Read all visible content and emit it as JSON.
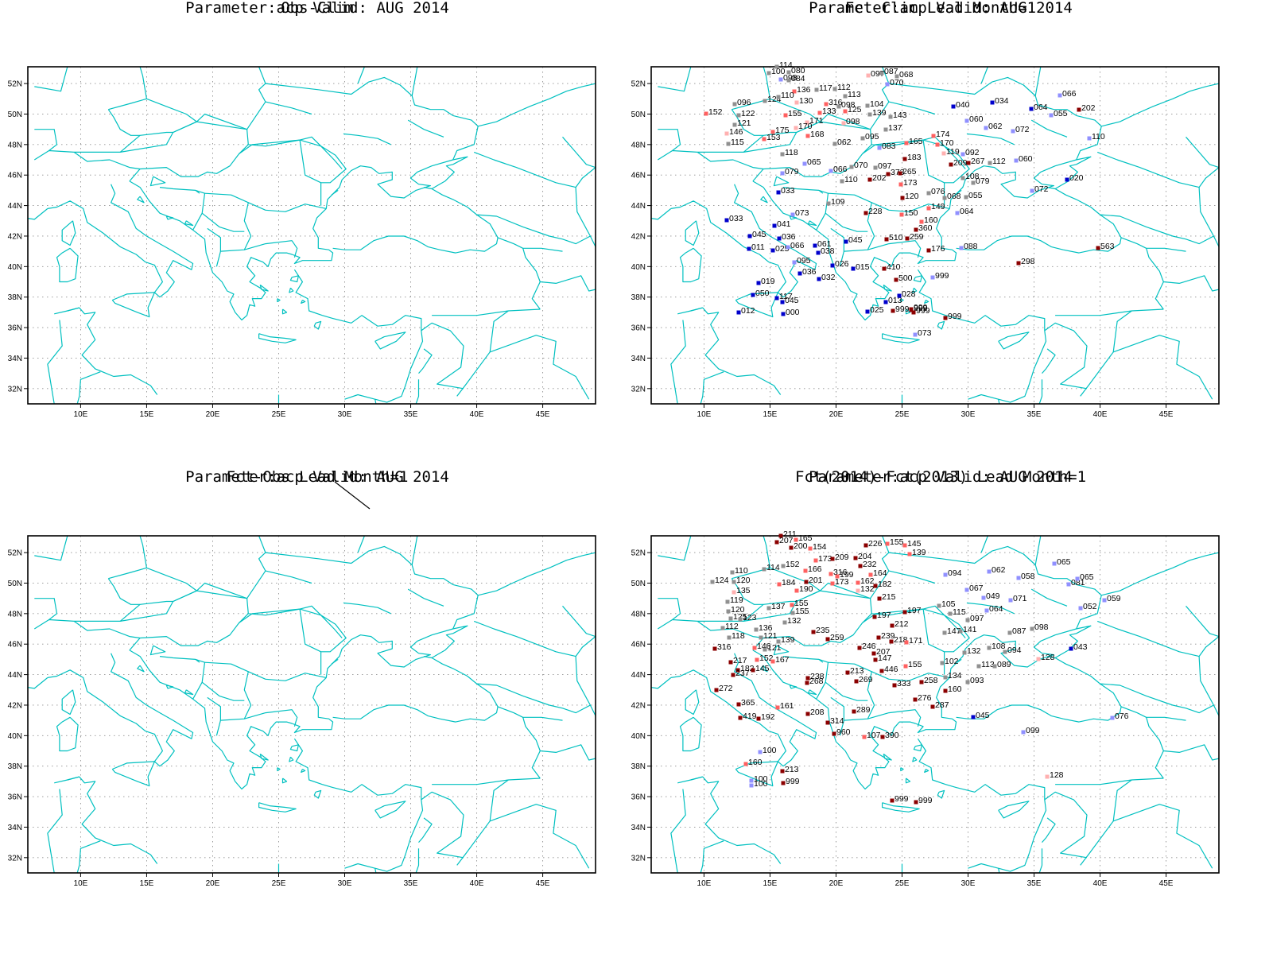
{
  "panels": [
    {
      "title_line1": "Parameter:acp Valid: AUG 2014",
      "title_line2": "Obs-Clim"
    },
    {
      "title_line1": "Parameter:acp Valid: AUG 2014",
      "title_line2": "Fct-Clim Lead Month=1"
    },
    {
      "title_line1": "Parameter:acp Valid: AUG 2014",
      "title_line2": "Fct-Obs Lead Month=1"
    },
    {
      "title_line1": "Parameter:acp Valid: AUG 2014",
      "title_line2": "Fct(2014)-Fct(2013) Lead Month=1"
    }
  ],
  "axes": {
    "lon_labels": [
      "10E",
      "15E",
      "20E",
      "25E",
      "30E",
      "35E",
      "40E",
      "45E"
    ],
    "lat_labels": [
      "52N",
      "50N",
      "48N",
      "46N",
      "44N",
      "42N",
      "40N",
      "38N",
      "36N",
      "34N",
      "32N"
    ]
  },
  "colors": {
    "coast": "#00c0c0",
    "grid": "#909090",
    "dark_red": "#8b0000",
    "red": "#ff6060",
    "light_red": "#ffb0b0",
    "blue": "#0000cc",
    "light_blue": "#9090ff",
    "gray": "#909090"
  },
  "stations_fct_clim": [
    {
      "v": "114",
      "c": "gray"
    },
    {
      "v": "100",
      "c": "gray"
    },
    {
      "v": "080",
      "c": "gray"
    },
    {
      "v": "098",
      "c": "light_blue"
    },
    {
      "v": "084",
      "c": "gray"
    },
    {
      "v": "097",
      "c": "light_red"
    },
    {
      "v": "087",
      "c": "gray"
    },
    {
      "v": "068",
      "c": "gray"
    },
    {
      "v": "070",
      "c": "light_blue"
    },
    {
      "v": "136",
      "c": "red"
    },
    {
      "v": "117",
      "c": "gray"
    },
    {
      "v": "112",
      "c": "gray"
    },
    {
      "v": "113",
      "c": "gray"
    },
    {
      "v": "152",
      "c": "red"
    },
    {
      "v": "096",
      "c": "gray"
    },
    {
      "v": "124",
      "c": "gray"
    },
    {
      "v": "110",
      "c": "gray"
    },
    {
      "v": "130",
      "c": "light_red"
    },
    {
      "v": "316",
      "c": "red"
    },
    {
      "v": "098",
      "c": "gray"
    },
    {
      "v": "104",
      "c": "gray"
    },
    {
      "v": "122",
      "c": "gray"
    },
    {
      "v": "155",
      "c": "red"
    },
    {
      "v": "133",
      "c": "red"
    },
    {
      "v": "125",
      "c": "red"
    },
    {
      "v": "139",
      "c": "gray"
    },
    {
      "v": "143",
      "c": "gray"
    },
    {
      "v": "121",
      "c": "gray"
    },
    {
      "v": "171",
      "c": "light_red"
    },
    {
      "v": "098",
      "c": "light_red"
    },
    {
      "v": "137",
      "c": "gray"
    },
    {
      "v": "146",
      "c": "light_red"
    },
    {
      "v": "175",
      "c": "red"
    },
    {
      "v": "170",
      "c": "light_red"
    },
    {
      "v": "168",
      "c": "red"
    },
    {
      "v": "153",
      "c": "red"
    },
    {
      "v": "115",
      "c": "gray"
    },
    {
      "v": "062",
      "c": "gray"
    },
    {
      "v": "095",
      "c": "gray"
    },
    {
      "v": "083",
      "c": "light_blue"
    },
    {
      "v": "165",
      "c": "red"
    },
    {
      "v": "174",
      "c": "red"
    },
    {
      "v": "170",
      "c": "red"
    },
    {
      "v": "118",
      "c": "gray"
    },
    {
      "v": "183",
      "c": "dark_red"
    },
    {
      "v": "119",
      "c": "light_red"
    },
    {
      "v": "092",
      "c": "light_blue"
    },
    {
      "v": "065",
      "c": "light_blue"
    },
    {
      "v": "070",
      "c": "gray"
    },
    {
      "v": "097",
      "c": "gray"
    },
    {
      "v": "209",
      "c": "dark_red"
    },
    {
      "v": "267",
      "c": "dark_red"
    },
    {
      "v": "112",
      "c": "gray"
    },
    {
      "v": "060",
      "c": "light_blue"
    },
    {
      "v": "066",
      "c": "light_blue"
    },
    {
      "v": "079",
      "c": "light_blue"
    },
    {
      "v": "373",
      "c": "dark_red"
    },
    {
      "v": "265",
      "c": "dark_red"
    },
    {
      "v": "202",
      "c": "dark_red"
    },
    {
      "v": "110",
      "c": "gray"
    },
    {
      "v": "173",
      "c": "red"
    },
    {
      "v": "108",
      "c": "gray"
    },
    {
      "v": "079",
      "c": "gray"
    },
    {
      "v": "020",
      "c": "blue"
    },
    {
      "v": "033",
      "c": "blue"
    },
    {
      "v": "076",
      "c": "gray"
    },
    {
      "v": "072",
      "c": "light_blue"
    },
    {
      "v": "120",
      "c": "dark_red"
    },
    {
      "v": "068",
      "c": "gray"
    },
    {
      "v": "055",
      "c": "gray"
    },
    {
      "v": "109",
      "c": "gray"
    },
    {
      "v": "149",
      "c": "red"
    },
    {
      "v": "228",
      "c": "dark_red"
    },
    {
      "v": "064",
      "c": "light_blue"
    },
    {
      "v": "073",
      "c": "light_blue"
    },
    {
      "v": "150",
      "c": "red"
    },
    {
      "v": "160",
      "c": "red"
    },
    {
      "v": "033",
      "c": "blue"
    },
    {
      "v": "041",
      "c": "blue"
    },
    {
      "v": "360",
      "c": "dark_red"
    },
    {
      "v": "045",
      "c": "blue"
    },
    {
      "v": "036",
      "c": "blue"
    },
    {
      "v": "259",
      "c": "dark_red"
    },
    {
      "v": "510",
      "c": "dark_red"
    },
    {
      "v": "011",
      "c": "blue"
    },
    {
      "v": "025",
      "c": "blue"
    },
    {
      "v": "066",
      "c": "light_blue"
    },
    {
      "v": "061",
      "c": "blue"
    },
    {
      "v": "045",
      "c": "blue"
    },
    {
      "v": "176",
      "c": "dark_red"
    },
    {
      "v": "088",
      "c": "light_blue"
    },
    {
      "v": "563",
      "c": "dark_red"
    },
    {
      "v": "038",
      "c": "blue"
    },
    {
      "v": "095",
      "c": "light_blue"
    },
    {
      "v": "026",
      "c": "blue"
    },
    {
      "v": "015",
      "c": "blue"
    },
    {
      "v": "410",
      "c": "dark_red"
    },
    {
      "v": "298",
      "c": "dark_red"
    },
    {
      "v": "036",
      "c": "blue"
    },
    {
      "v": "032",
      "c": "blue"
    },
    {
      "v": "500",
      "c": "dark_red"
    },
    {
      "v": "999",
      "c": "light_blue"
    },
    {
      "v": "019",
      "c": "blue"
    },
    {
      "v": "050",
      "c": "blue"
    },
    {
      "v": "117",
      "c": "blue"
    },
    {
      "v": "013",
      "c": "blue"
    },
    {
      "v": "028",
      "c": "blue"
    },
    {
      "v": "045",
      "c": "blue"
    },
    {
      "v": "999",
      "c": "dark_red"
    },
    {
      "v": "999",
      "c": "dark_red"
    },
    {
      "v": "012",
      "c": "blue"
    },
    {
      "v": "000",
      "c": "blue"
    },
    {
      "v": "025",
      "c": "blue"
    },
    {
      "v": "999",
      "c": "dark_red"
    },
    {
      "v": "999",
      "c": "dark_red"
    },
    {
      "v": "999",
      "c": "dark_red"
    },
    {
      "v": "073",
      "c": "light_blue"
    },
    {
      "v": "040",
      "c": "blue"
    },
    {
      "v": "034",
      "c": "blue"
    },
    {
      "v": "064",
      "c": "blue"
    },
    {
      "v": "066",
      "c": "light_blue"
    },
    {
      "v": "202",
      "c": "dark_red"
    },
    {
      "v": "055",
      "c": "light_blue"
    },
    {
      "v": "060",
      "c": "light_blue"
    },
    {
      "v": "062",
      "c": "light_blue"
    },
    {
      "v": "072",
      "c": "light_blue"
    },
    {
      "v": "110",
      "c": "light_blue"
    }
  ],
  "stations_fct2014_2013": [
    {
      "v": "211",
      "c": "dark_red"
    },
    {
      "v": "207",
      "c": "dark_red"
    },
    {
      "v": "165",
      "c": "red"
    },
    {
      "v": "200",
      "c": "dark_red"
    },
    {
      "v": "154",
      "c": "red"
    },
    {
      "v": "226",
      "c": "dark_red"
    },
    {
      "v": "155",
      "c": "red"
    },
    {
      "v": "145",
      "c": "red"
    },
    {
      "v": "139",
      "c": "red"
    },
    {
      "v": "173",
      "c": "red"
    },
    {
      "v": "209",
      "c": "dark_red"
    },
    {
      "v": "204",
      "c": "dark_red"
    },
    {
      "v": "232",
      "c": "dark_red"
    },
    {
      "v": "124",
      "c": "gray"
    },
    {
      "v": "110",
      "c": "gray"
    },
    {
      "v": "114",
      "c": "gray"
    },
    {
      "v": "152",
      "c": "gray"
    },
    {
      "v": "166",
      "c": "red"
    },
    {
      "v": "316",
      "c": "red"
    },
    {
      "v": "199",
      "c": "red"
    },
    {
      "v": "164",
      "c": "red"
    },
    {
      "v": "120",
      "c": "gray"
    },
    {
      "v": "184",
      "c": "red"
    },
    {
      "v": "201",
      "c": "dark_red"
    },
    {
      "v": "173",
      "c": "red"
    },
    {
      "v": "162",
      "c": "red"
    },
    {
      "v": "182",
      "c": "dark_red"
    },
    {
      "v": "135",
      "c": "light_red"
    },
    {
      "v": "190",
      "c": "red"
    },
    {
      "v": "132",
      "c": "light_red"
    },
    {
      "v": "215",
      "c": "dark_red"
    },
    {
      "v": "119",
      "c": "gray"
    },
    {
      "v": "155",
      "c": "red"
    },
    {
      "v": "137",
      "c": "gray"
    },
    {
      "v": "155",
      "c": "gray"
    },
    {
      "v": "120",
      "c": "gray"
    },
    {
      "v": "125",
      "c": "gray"
    },
    {
      "v": "123",
      "c": "gray"
    },
    {
      "v": "132",
      "c": "gray"
    },
    {
      "v": "197",
      "c": "dark_red"
    },
    {
      "v": "197",
      "c": "dark_red"
    },
    {
      "v": "112",
      "c": "gray"
    },
    {
      "v": "136",
      "c": "gray"
    },
    {
      "v": "235",
      "c": "dark_red"
    },
    {
      "v": "212",
      "c": "dark_red"
    },
    {
      "v": "118",
      "c": "gray"
    },
    {
      "v": "121",
      "c": "gray"
    },
    {
      "v": "139",
      "c": "gray"
    },
    {
      "v": "259",
      "c": "dark_red"
    },
    {
      "v": "239",
      "c": "dark_red"
    },
    {
      "v": "218",
      "c": "dark_red"
    },
    {
      "v": "171",
      "c": "red"
    },
    {
      "v": "316",
      "c": "dark_red"
    },
    {
      "v": "146",
      "c": "red"
    },
    {
      "v": "121",
      "c": "gray"
    },
    {
      "v": "246",
      "c": "dark_red"
    },
    {
      "v": "207",
      "c": "dark_red"
    },
    {
      "v": "152",
      "c": "red"
    },
    {
      "v": "167",
      "c": "red"
    },
    {
      "v": "147",
      "c": "dark_red"
    },
    {
      "v": "155",
      "c": "red"
    },
    {
      "v": "217",
      "c": "dark_red"
    },
    {
      "v": "182",
      "c": "dark_red"
    },
    {
      "v": "145",
      "c": "dark_red"
    },
    {
      "v": "237",
      "c": "dark_red"
    },
    {
      "v": "213",
      "c": "dark_red"
    },
    {
      "v": "446",
      "c": "dark_red"
    },
    {
      "v": "238",
      "c": "dark_red"
    },
    {
      "v": "268",
      "c": "dark_red"
    },
    {
      "v": "269",
      "c": "dark_red"
    },
    {
      "v": "272",
      "c": "dark_red"
    },
    {
      "v": "333",
      "c": "dark_red"
    },
    {
      "v": "258",
      "c": "dark_red"
    },
    {
      "v": "160",
      "c": "dark_red"
    },
    {
      "v": "365",
      "c": "dark_red"
    },
    {
      "v": "161",
      "c": "red"
    },
    {
      "v": "276",
      "c": "dark_red"
    },
    {
      "v": "287",
      "c": "dark_red"
    },
    {
      "v": "419",
      "c": "dark_red"
    },
    {
      "v": "192",
      "c": "dark_red"
    },
    {
      "v": "208",
      "c": "dark_red"
    },
    {
      "v": "289",
      "c": "dark_red"
    },
    {
      "v": "314",
      "c": "dark_red"
    },
    {
      "v": "960",
      "c": "dark_red"
    },
    {
      "v": "107",
      "c": "red"
    },
    {
      "v": "390",
      "c": "dark_red"
    },
    {
      "v": "100",
      "c": "light_blue"
    },
    {
      "v": "160",
      "c": "red"
    },
    {
      "v": "213",
      "c": "dark_red"
    },
    {
      "v": "100",
      "c": "light_blue"
    },
    {
      "v": "999",
      "c": "dark_red"
    },
    {
      "v": "100",
      "c": "light_blue"
    },
    {
      "v": "999",
      "c": "dark_red"
    },
    {
      "v": "999",
      "c": "dark_red"
    },
    {
      "v": "094",
      "c": "light_blue"
    },
    {
      "v": "062",
      "c": "light_blue"
    },
    {
      "v": "058",
      "c": "light_blue"
    },
    {
      "v": "065",
      "c": "light_blue"
    },
    {
      "v": "081",
      "c": "light_blue"
    },
    {
      "v": "065",
      "c": "light_blue"
    },
    {
      "v": "067",
      "c": "light_blue"
    },
    {
      "v": "049",
      "c": "light_blue"
    },
    {
      "v": "071",
      "c": "light_blue"
    },
    {
      "v": "059",
      "c": "light_blue"
    },
    {
      "v": "105",
      "c": "gray"
    },
    {
      "v": "115",
      "c": "gray"
    },
    {
      "v": "064",
      "c": "light_blue"
    },
    {
      "v": "052",
      "c": "light_blue"
    },
    {
      "v": "147",
      "c": "gray"
    },
    {
      "v": "141",
      "c": "gray"
    },
    {
      "v": "097",
      "c": "gray"
    },
    {
      "v": "087",
      "c": "gray"
    },
    {
      "v": "098",
      "c": "gray"
    },
    {
      "v": "132",
      "c": "gray"
    },
    {
      "v": "108",
      "c": "gray"
    },
    {
      "v": "094",
      "c": "gray"
    },
    {
      "v": "128",
      "c": "light_red"
    },
    {
      "v": "043",
      "c": "blue"
    },
    {
      "v": "102",
      "c": "gray"
    },
    {
      "v": "113",
      "c": "gray"
    },
    {
      "v": "089",
      "c": "gray"
    },
    {
      "v": "134",
      "c": "gray"
    },
    {
      "v": "093",
      "c": "gray"
    },
    {
      "v": "045",
      "c": "blue"
    },
    {
      "v": "076",
      "c": "light_blue"
    },
    {
      "v": "099",
      "c": "light_blue"
    },
    {
      "v": "128",
      "c": "light_red"
    }
  ]
}
